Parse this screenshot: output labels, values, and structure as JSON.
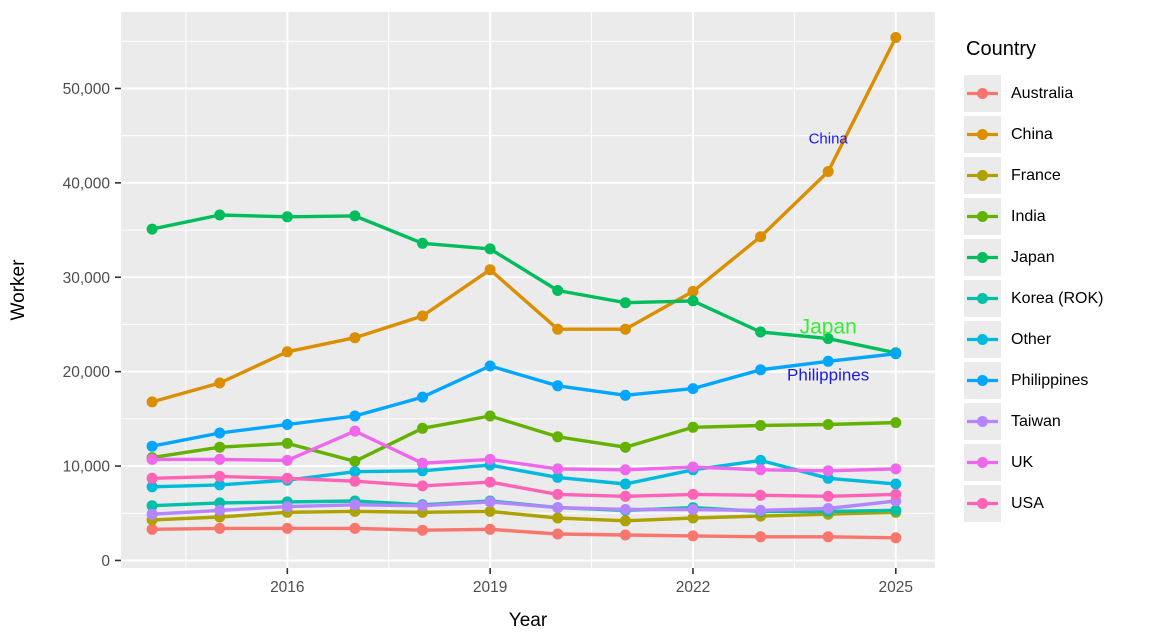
{
  "figure": {
    "title": "",
    "background": "#ffffff",
    "panel_background": "#ebebeb",
    "gridline_color": "#ffffff",
    "tick_label_color": "#4d4d4d",
    "axis_title_color": "#000000"
  },
  "chart_data": {
    "type": "line",
    "title": "",
    "xlabel": "Year",
    "ylabel": "Worker",
    "legend_title": "Country",
    "legend_position": "right",
    "grid": true,
    "xlim": [
      2013.54,
      2025.58
    ],
    "ylim": [
      -800,
      58100
    ],
    "x": [
      2014,
      2015,
      2016,
      2017,
      2018,
      2019,
      2020,
      2021,
      2022,
      2023,
      2024,
      2025
    ],
    "x_ticks": [
      2016,
      2019,
      2022,
      2025
    ],
    "x_tick_labels": [
      "2016",
      "2019",
      "2022",
      "2025"
    ],
    "y_ticks": [
      0,
      10000,
      20000,
      30000,
      40000,
      50000
    ],
    "y_tick_labels": [
      "0",
      "10,000",
      "20,000",
      "30,000",
      "40,000",
      "50,000"
    ],
    "minor_x_ticks": [
      2014.5,
      2017.5,
      2020.5,
      2023.5
    ],
    "minor_y_ticks": [
      5000,
      15000,
      25000,
      35000,
      45000,
      55000
    ],
    "series": [
      {
        "name": "Australia",
        "color": "#F8766D",
        "values": [
          3300,
          3400,
          3400,
          3400,
          3200,
          3300,
          2800,
          2700,
          2600,
          2500,
          2500,
          2400
        ]
      },
      {
        "name": "China",
        "color": "#DB8E00",
        "values": [
          16800,
          18800,
          22100,
          23600,
          25900,
          30800,
          24500,
          24500,
          28500,
          34300,
          41200,
          55400
        ]
      },
      {
        "name": "France",
        "color": "#AEA200",
        "values": [
          4300,
          4600,
          5100,
          5200,
          5100,
          5200,
          4500,
          4200,
          4500,
          4700,
          4900,
          5100
        ]
      },
      {
        "name": "India",
        "color": "#64B200",
        "values": [
          10900,
          12000,
          12400,
          10500,
          14000,
          15300,
          13100,
          12000,
          14100,
          14300,
          14400,
          14600
        ]
      },
      {
        "name": "Japan",
        "color": "#00BD5C",
        "values": [
          35100,
          36600,
          36400,
          36500,
          33600,
          33000,
          28600,
          27300,
          27500,
          24200,
          23500,
          22000
        ]
      },
      {
        "name": "Korea (ROK)",
        "color": "#00C1A7",
        "values": [
          5800,
          6100,
          6200,
          6300,
          5900,
          6300,
          5600,
          5300,
          5600,
          5200,
          5200,
          5300
        ]
      },
      {
        "name": "Other",
        "color": "#00BADE",
        "values": [
          7800,
          8000,
          8500,
          9400,
          9500,
          10100,
          8800,
          8100,
          9600,
          10600,
          8700,
          8100
        ]
      },
      {
        "name": "Philippines",
        "color": "#00A6FF",
        "values": [
          12100,
          13500,
          14400,
          15300,
          17300,
          20600,
          18500,
          17500,
          18200,
          20200,
          21100,
          21900
        ]
      },
      {
        "name": "Taiwan",
        "color": "#B385FF",
        "values": [
          4900,
          5300,
          5700,
          5900,
          5800,
          6200,
          5600,
          5400,
          5400,
          5300,
          5500,
          6300
        ]
      },
      {
        "name": "UK",
        "color": "#EF67EB",
        "values": [
          10700,
          10700,
          10600,
          13700,
          10300,
          10700,
          9700,
          9600,
          9900,
          9600,
          9500,
          9700
        ]
      },
      {
        "name": "USA",
        "color": "#FF63B6",
        "values": [
          8700,
          8900,
          8700,
          8400,
          7900,
          8300,
          7000,
          6800,
          7000,
          6900,
          6800,
          7000
        ]
      }
    ],
    "annotations": [
      {
        "text": "China",
        "x": 2024,
        "y": 44700,
        "color": "#1A1AEE",
        "font_size": 15
      },
      {
        "text": "Japan",
        "x": 2024,
        "y": 24800,
        "color": "#33EE33",
        "font_size": 21
      },
      {
        "text": "Philippines",
        "x": 2024,
        "y": 19700,
        "color": "#1A1AEE",
        "font_size": 17
      }
    ]
  }
}
